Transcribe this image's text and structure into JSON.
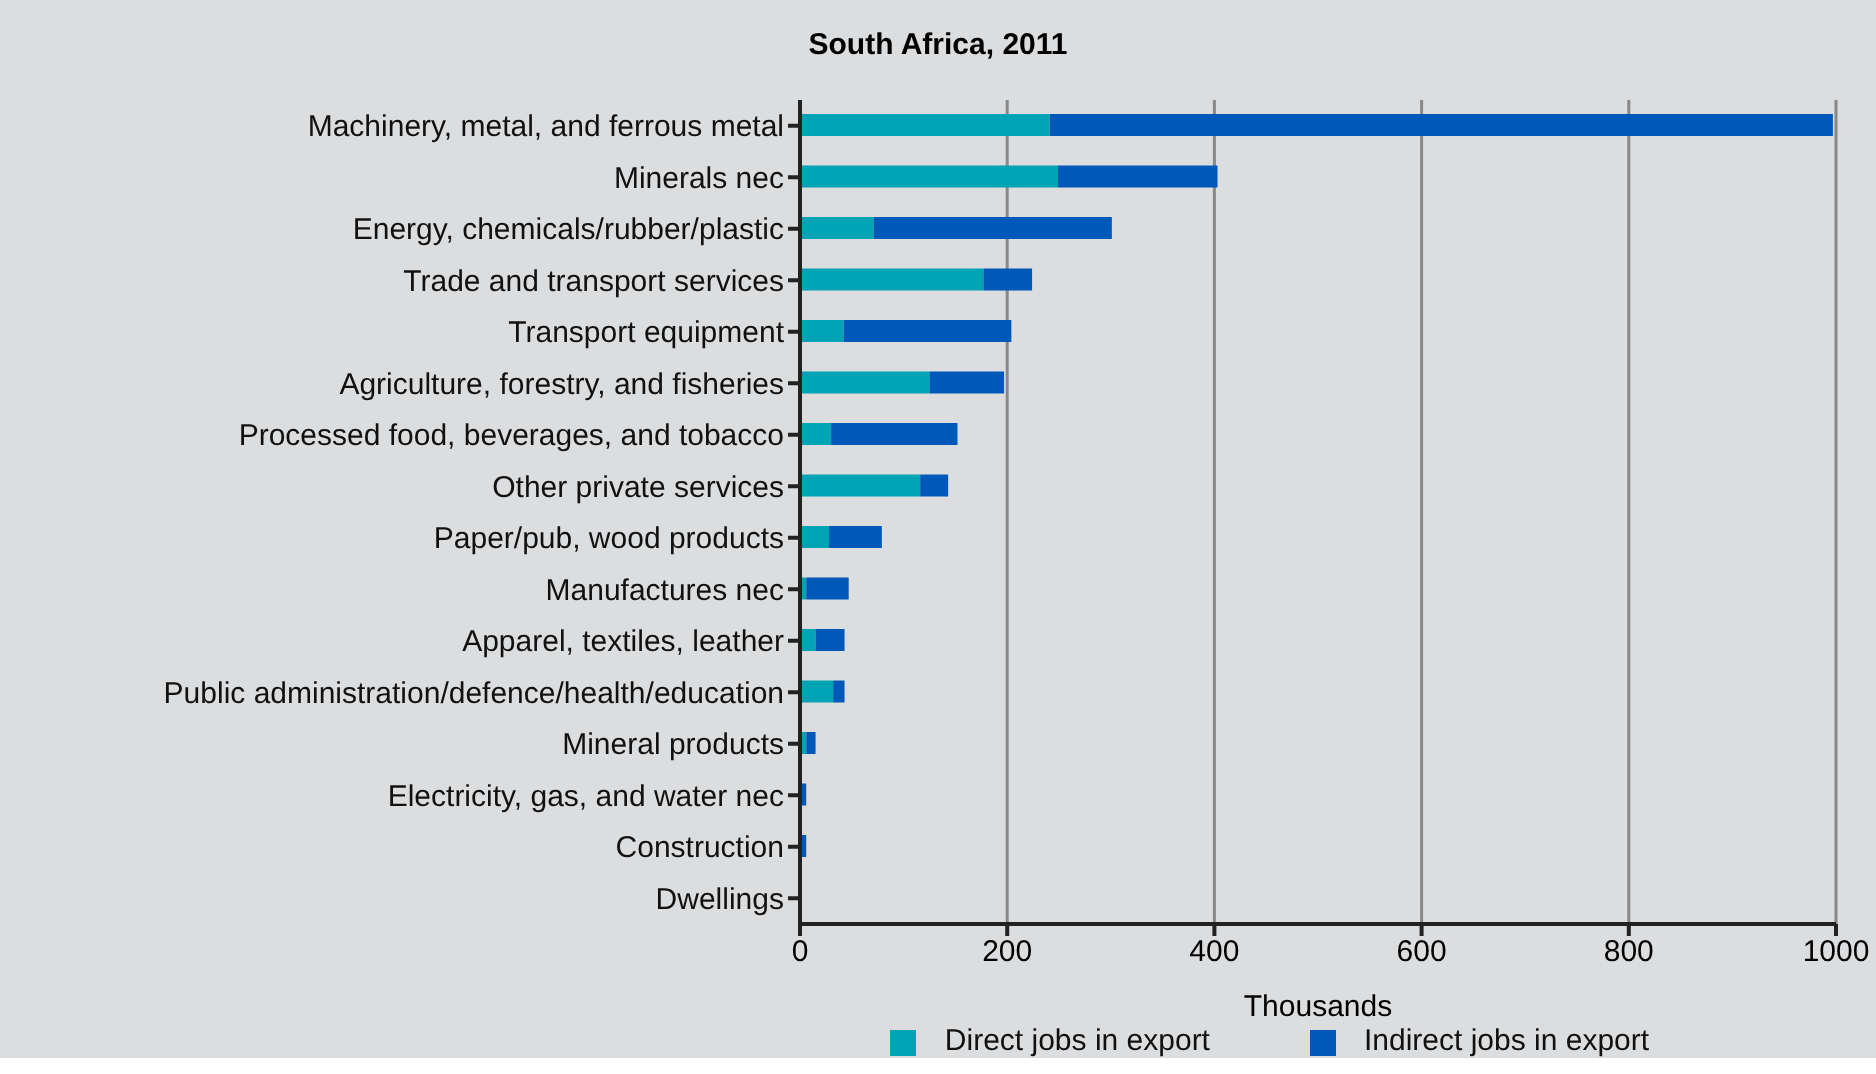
{
  "chart_data": {
    "type": "bar",
    "title": "South Africa, 2011",
    "orientation": "horizontal",
    "stacked": true,
    "xlabel": "Thousands",
    "categories": [
      "Machinery, metal, and ferrous metal",
      "Minerals nec",
      "Energy, chemicals/rubber/plastic",
      "Trade and transport services",
      "Transport equipment",
      "Agriculture, forestry, and fisheries",
      "Processed food, beverages, and tobacco",
      "Other private services",
      "Paper/pub, wood products",
      "Manufactures nec",
      "Apparel, textiles, leather",
      "Public administration/defence/health/education",
      "Mineral products",
      "Electricity, gas, and water nec",
      "Construction",
      "Dwellings"
    ],
    "series": [
      {
        "name": "Direct jobs in export",
        "color": "#00a5b5",
        "values": [
          241,
          249,
          71,
          177,
          42,
          125,
          30,
          116,
          28,
          6,
          15,
          32,
          6,
          1,
          1,
          0
        ]
      },
      {
        "name": "Indirect jobs in export",
        "color": "#0058b9",
        "values": [
          756,
          154,
          230,
          47,
          162,
          72,
          122,
          27,
          51,
          41,
          28,
          11,
          9,
          5,
          5,
          0
        ]
      }
    ],
    "xlim": [
      0,
      1000
    ],
    "xticks": [
      0,
      200,
      400,
      600,
      800,
      1000
    ],
    "grid": "x",
    "legend": "bottom"
  }
}
